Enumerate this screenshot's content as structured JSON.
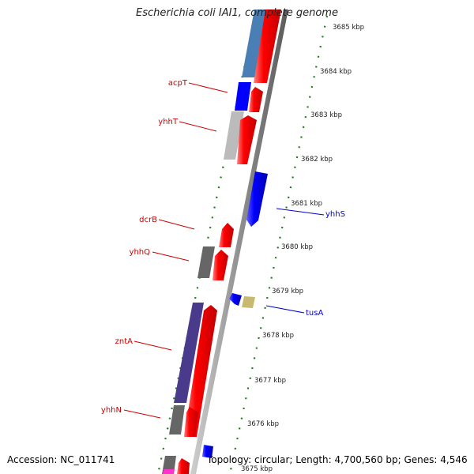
{
  "title": "Escherichia coli IAI1, complete genome",
  "footer": {
    "accession": "Accession: NC_011741",
    "summary": "Topology: circular; Length: 4,700,560 bp; Genes: 4,546"
  },
  "ticks": [
    {
      "label": "3685 kbp"
    },
    {
      "label": "3684 kbp"
    },
    {
      "label": "3683 kbp"
    },
    {
      "label": "3682 kbp"
    },
    {
      "label": "3681 kbp"
    },
    {
      "label": "3680 kbp"
    },
    {
      "label": "3679 kbp"
    },
    {
      "label": "3678 kbp"
    },
    {
      "label": "3677 kbp"
    },
    {
      "label": "3676 kbp"
    },
    {
      "label": "3675 kbp"
    }
  ],
  "gene_labels": [
    {
      "name": "acpT",
      "color": "#cc0000"
    },
    {
      "name": "yhhT",
      "color": "#cc0000"
    },
    {
      "name": "yhhS",
      "color": "#0000cc"
    },
    {
      "name": "dcrB",
      "color": "#cc0000"
    },
    {
      "name": "yhhQ",
      "color": "#cc0000"
    },
    {
      "name": "tusA",
      "color": "#0000cc"
    },
    {
      "name": "zntA",
      "color": "#cc0000"
    },
    {
      "name": "yhhN",
      "color": "#cc0000"
    }
  ],
  "colors": {
    "forward_cds": "#ff0000",
    "reverse_cds": "#0000ff",
    "backbone": "#888888",
    "tick_dashes": "#1a7f1a",
    "gray_feature": "#666666",
    "purple_feature": "#4a3a8c",
    "steel_feature": "#4a7fb5",
    "silver_feature": "#bbbbbb",
    "khaki_feature": "#c8b870",
    "magenta_feature": "#ff33cc"
  }
}
